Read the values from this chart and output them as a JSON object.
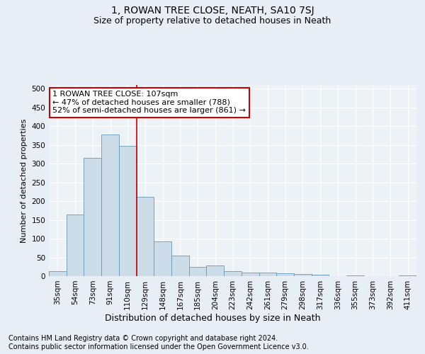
{
  "title": "1, ROWAN TREE CLOSE, NEATH, SA10 7SJ",
  "subtitle": "Size of property relative to detached houses in Neath",
  "xlabel": "Distribution of detached houses by size in Neath",
  "ylabel": "Number of detached properties",
  "categories": [
    "35sqm",
    "54sqm",
    "73sqm",
    "91sqm",
    "110sqm",
    "129sqm",
    "148sqm",
    "167sqm",
    "185sqm",
    "204sqm",
    "223sqm",
    "242sqm",
    "261sqm",
    "279sqm",
    "298sqm",
    "317sqm",
    "336sqm",
    "355sqm",
    "373sqm",
    "392sqm",
    "411sqm"
  ],
  "values": [
    13,
    165,
    315,
    378,
    348,
    212,
    93,
    54,
    25,
    28,
    13,
    10,
    9,
    7,
    5,
    4,
    0,
    2,
    0,
    0,
    2
  ],
  "bar_color": "#ccdce8",
  "bar_edge_color": "#6699bb",
  "vline_x_index": 4,
  "vline_color": "#cc0000",
  "annotation_text": "1 ROWAN TREE CLOSE: 107sqm\n← 47% of detached houses are smaller (788)\n52% of semi-detached houses are larger (861) →",
  "annotation_box_color": "#ffffff",
  "annotation_box_edge_color": "#cc0000",
  "footer_text": "Contains HM Land Registry data © Crown copyright and database right 2024.\nContains public sector information licensed under the Open Government Licence v3.0.",
  "ylim": [
    0,
    510
  ],
  "yticks": [
    0,
    50,
    100,
    150,
    200,
    250,
    300,
    350,
    400,
    450,
    500
  ],
  "background_color": "#e8eef5",
  "plot_background_color": "#edf2f7",
  "grid_color": "#ffffff",
  "title_fontsize": 10,
  "subtitle_fontsize": 9,
  "ylabel_fontsize": 8,
  "xlabel_fontsize": 9,
  "tick_fontsize": 7.5,
  "annotation_fontsize": 8,
  "footer_fontsize": 7
}
